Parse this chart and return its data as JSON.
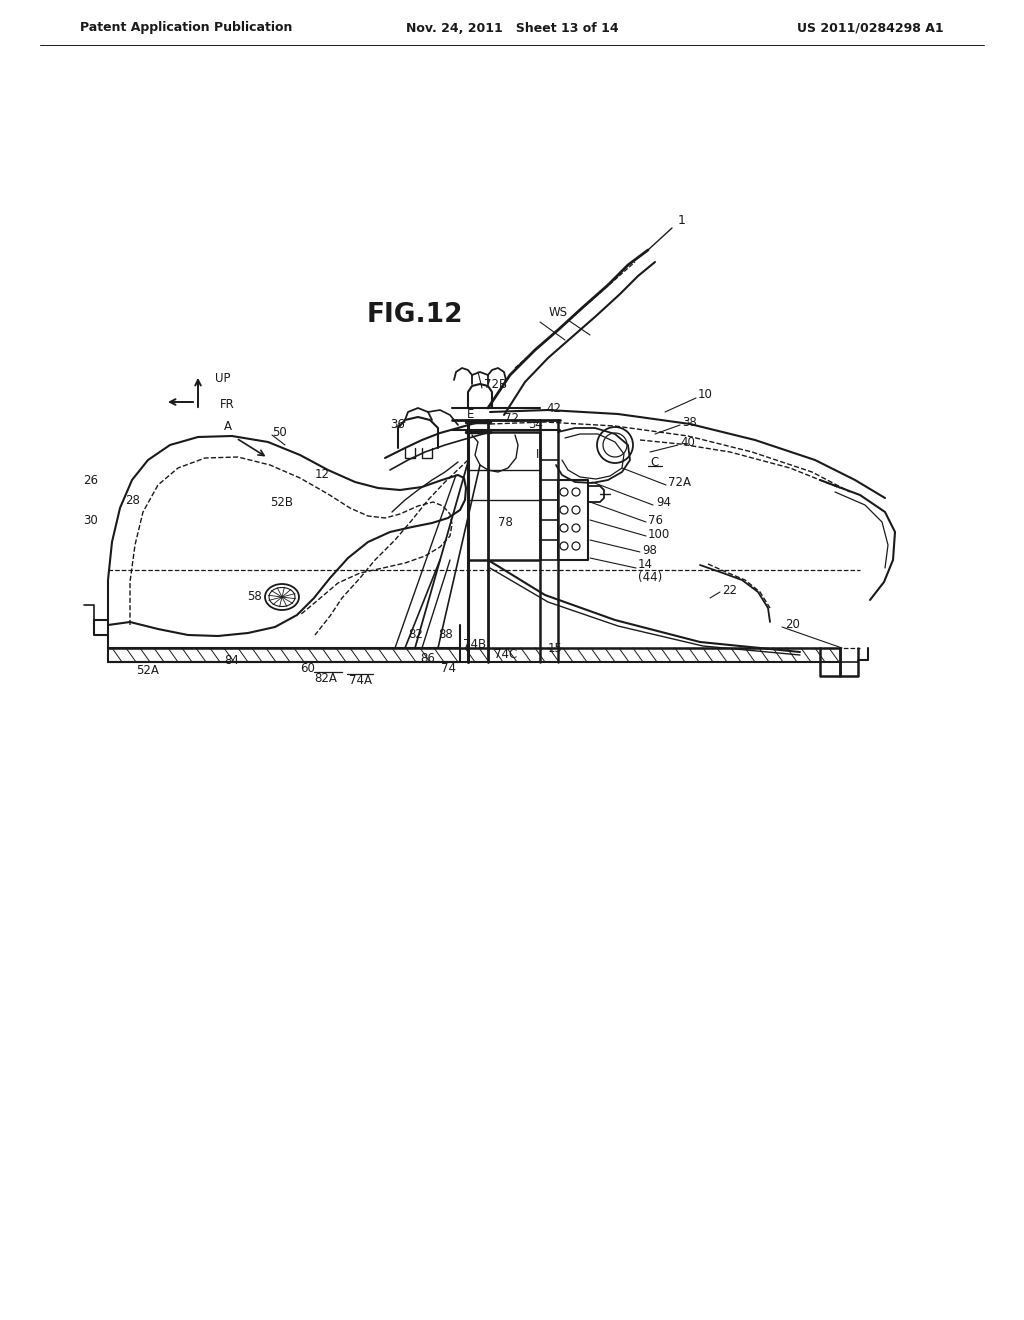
{
  "title": "FIG.12",
  "header_left": "Patent Application Publication",
  "header_center": "Nov. 24, 2011   Sheet 13 of 14",
  "header_right": "US 2011/0284298 A1",
  "bg_color": "#ffffff",
  "line_color": "#1a1a1a"
}
